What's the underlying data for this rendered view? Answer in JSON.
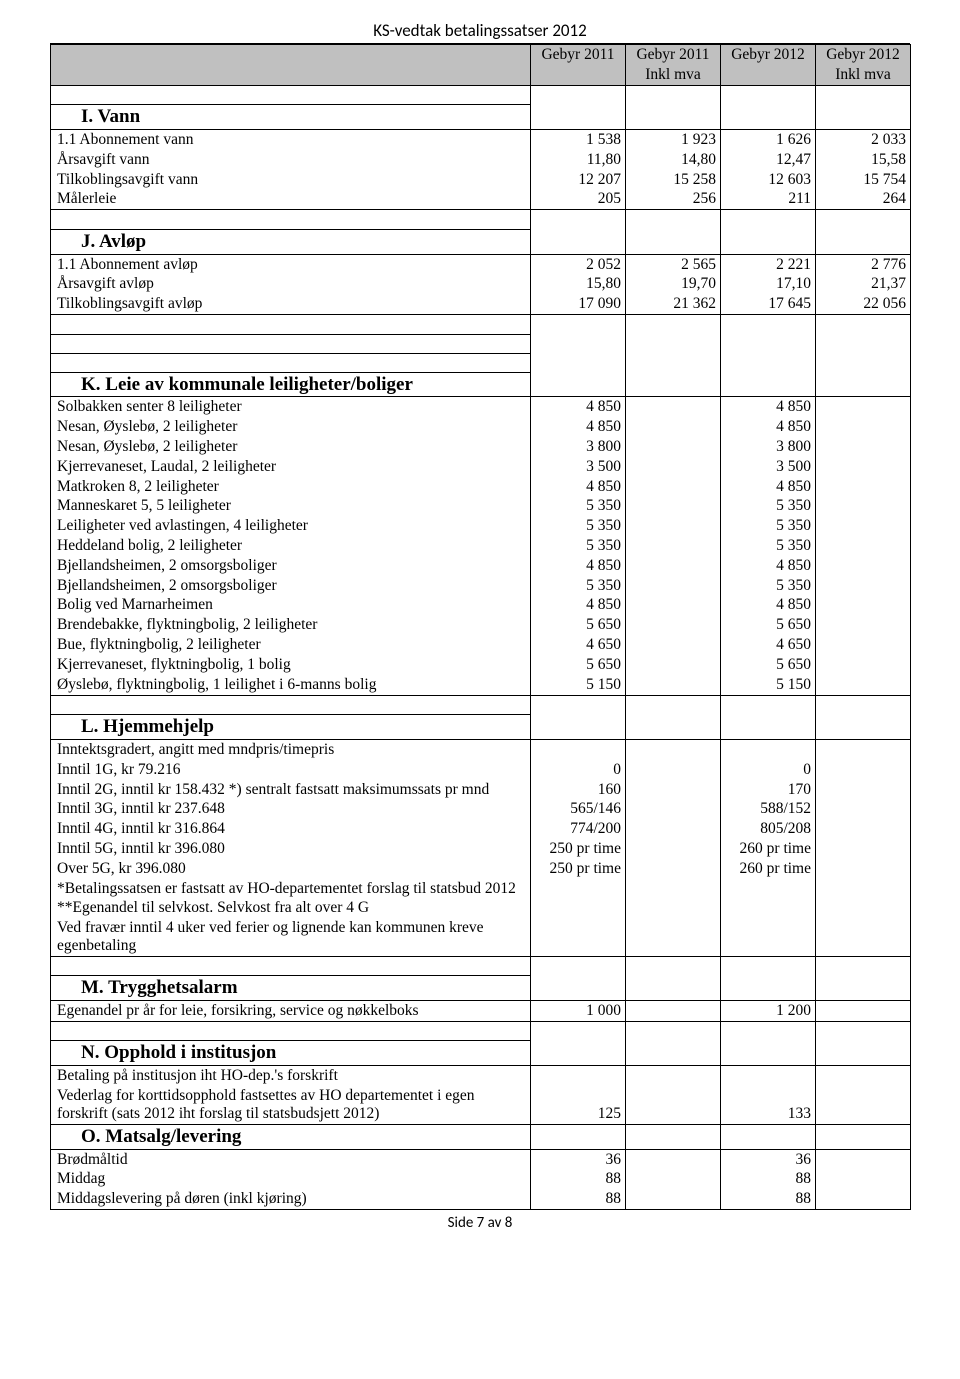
{
  "page_title": "KS-vedtak betalingssatser 2012",
  "footer": "Side 7 av 8",
  "headers": {
    "c1_l1": "Gebyr 2011",
    "c1_l2": "",
    "c2_l1": "Gebyr 2011",
    "c2_l2": "Inkl mva",
    "c3_l1": "Gebyr 2012",
    "c3_l2": "",
    "c4_l1": "Gebyr 2012",
    "c4_l2": "Inkl mva"
  },
  "sections": {
    "I": {
      "title": "I. Vann",
      "rows": [
        {
          "label": "1.1 Abonnement vann",
          "c1": "1 538",
          "c2": "1 923",
          "c3": "1 626",
          "c4": "2 033"
        },
        {
          "label": "Årsavgift vann",
          "c1": "11,80",
          "c2": "14,80",
          "c3": "12,47",
          "c4": "15,58"
        },
        {
          "label": "Tilkoblingsavgift vann",
          "c1": "12 207",
          "c2": "15 258",
          "c3": "12 603",
          "c4": "15 754"
        },
        {
          "label": "Målerleie",
          "c1": "205",
          "c2": "256",
          "c3": "211",
          "c4": "264"
        }
      ]
    },
    "J": {
      "title": "J. Avløp",
      "rows": [
        {
          "label": "1.1 Abonnement avløp",
          "c1": "2 052",
          "c2": "2 565",
          "c3": "2 221",
          "c4": "2 776"
        },
        {
          "label": "Årsavgift avløp",
          "c1": "15,80",
          "c2": "19,70",
          "c3": "17,10",
          "c4": "21,37"
        },
        {
          "label": "Tilkoblingsavgift avløp",
          "c1": "17 090",
          "c2": "21 362",
          "c3": "17 645",
          "c4": "22 056"
        }
      ]
    },
    "K": {
      "title": "K. Leie av kommunale leiligheter/boliger",
      "rows": [
        {
          "label": "Solbakken senter 8 leiligheter",
          "c1": "4 850",
          "c2": "",
          "c3": "4 850",
          "c4": ""
        },
        {
          "label": "Nesan, Øyslebø, 2 leiligheter",
          "c1": "4 850",
          "c2": "",
          "c3": "4 850",
          "c4": ""
        },
        {
          "label": "Nesan, Øyslebø, 2 leiligheter",
          "c1": "3 800",
          "c2": "",
          "c3": "3 800",
          "c4": ""
        },
        {
          "label": "Kjerrevaneset, Laudal, 2 leiligheter",
          "c1": "3 500",
          "c2": "",
          "c3": "3 500",
          "c4": ""
        },
        {
          "label": "Matkroken 8, 2 leiligheter",
          "c1": "4 850",
          "c2": "",
          "c3": "4 850",
          "c4": ""
        },
        {
          "label": "Manneskaret 5, 5 leiligheter",
          "c1": "5 350",
          "c2": "",
          "c3": "5 350",
          "c4": ""
        },
        {
          "label": "Leiligheter ved avlastingen, 4 leiligheter",
          "c1": "5 350",
          "c2": "",
          "c3": "5 350",
          "c4": ""
        },
        {
          "label": "Heddeland bolig, 2 leiligheter",
          "c1": "5 350",
          "c2": "",
          "c3": "5 350",
          "c4": ""
        },
        {
          "label": "Bjellandsheimen, 2 omsorgsboliger",
          "c1": "4 850",
          "c2": "",
          "c3": "4 850",
          "c4": ""
        },
        {
          "label": "Bjellandsheimen, 2 omsorgsboliger",
          "c1": "5 350",
          "c2": "",
          "c3": "5 350",
          "c4": ""
        },
        {
          "label": "Bolig ved Marnarheimen",
          "c1": "4 850",
          "c2": "",
          "c3": "4 850",
          "c4": ""
        },
        {
          "label": "Brendebakke, flyktningbolig, 2 leiligheter",
          "c1": "5 650",
          "c2": "",
          "c3": "5 650",
          "c4": ""
        },
        {
          "label": "Bue, flyktningbolig, 2 leiligheter",
          "c1": "4 650",
          "c2": "",
          "c3": "4 650",
          "c4": ""
        },
        {
          "label": "Kjerrevaneset, flyktningbolig, 1 bolig",
          "c1": "5 650",
          "c2": "",
          "c3": "5 650",
          "c4": ""
        },
        {
          "label": "Øyslebø, flyktningbolig, 1 leilighet i 6-manns bolig",
          "c1": "5 150",
          "c2": "",
          "c3": "5 150",
          "c4": ""
        }
      ]
    },
    "L": {
      "title": "L. Hjemmehjelp",
      "rows": [
        {
          "label": "Inntektsgradert, angitt med mndpris/timepris",
          "c1": "",
          "c2": "",
          "c3": "",
          "c4": ""
        },
        {
          "label": "Inntil 1G, kr 79.216",
          "c1": "0",
          "c2": "",
          "c3": "0",
          "c4": ""
        },
        {
          "label": "Inntil 2G, inntil kr 158.432 *) sentralt fastsatt maksimumssats pr mnd",
          "c1": "160",
          "c2": "",
          "c3": "170",
          "c4": ""
        },
        {
          "label": "Inntil 3G, inntil kr 237.648",
          "c1": "565/146",
          "c2": "",
          "c3": "588/152",
          "c4": ""
        },
        {
          "label": "Inntil 4G, inntil kr 316.864",
          "c1": "774/200",
          "c2": "",
          "c3": "805/208",
          "c4": ""
        },
        {
          "label": "Inntil 5G, inntil kr 396.080",
          "c1": "250 pr time",
          "c2": "",
          "c3": "260 pr time",
          "c4": ""
        },
        {
          "label": "Over 5G, kr 396.080",
          "c1": "250 pr time",
          "c2": "",
          "c3": "260 pr time",
          "c4": ""
        },
        {
          "label": "*Betalingssatsen er fastsatt av HO-departementet forslag til statsbud 2012",
          "c1": "",
          "c2": "",
          "c3": "",
          "c4": ""
        },
        {
          "label": "**Egenandel til selvkost. Selvkost fra alt over 4 G",
          "c1": "",
          "c2": "",
          "c3": "",
          "c4": ""
        },
        {
          "label": "Ved fravær inntil 4 uker ved ferier og lignende kan kommunen kreve egenbetaling",
          "c1": "",
          "c2": "",
          "c3": "",
          "c4": "",
          "multiline": true
        }
      ]
    },
    "M": {
      "title": "M. Trygghetsalarm",
      "rows": [
        {
          "label": "Egenandel pr år for leie, forsikring, service og nøkkelboks",
          "c1": "1 000",
          "c2": "",
          "c3": "1 200",
          "c4": ""
        }
      ]
    },
    "N": {
      "title": "N. Opphold i institusjon",
      "rows": [
        {
          "label": "Betaling på institusjon iht HO-dep.'s forskrift",
          "c1": "",
          "c2": "",
          "c3": "",
          "c4": ""
        },
        {
          "label": "Vederlag for korttidsopphold fastsettes av HO departementet i egen forskrift (sats 2012 iht forslag til statsbudsjett 2012)",
          "c1": "125",
          "c2": "",
          "c3": "133",
          "c4": "",
          "multiline": true
        }
      ]
    },
    "O": {
      "title": "O. Matsalg/levering",
      "rows": [
        {
          "label": "Brødmåltid",
          "c1": "36",
          "c2": "",
          "c3": "36",
          "c4": ""
        },
        {
          "label": "Middag",
          "c1": "88",
          "c2": "",
          "c3": "88",
          "c4": ""
        },
        {
          "label": "Middagslevering på døren (inkl kjøring)",
          "c1": "88",
          "c2": "",
          "c3": "88",
          "c4": ""
        }
      ]
    }
  }
}
